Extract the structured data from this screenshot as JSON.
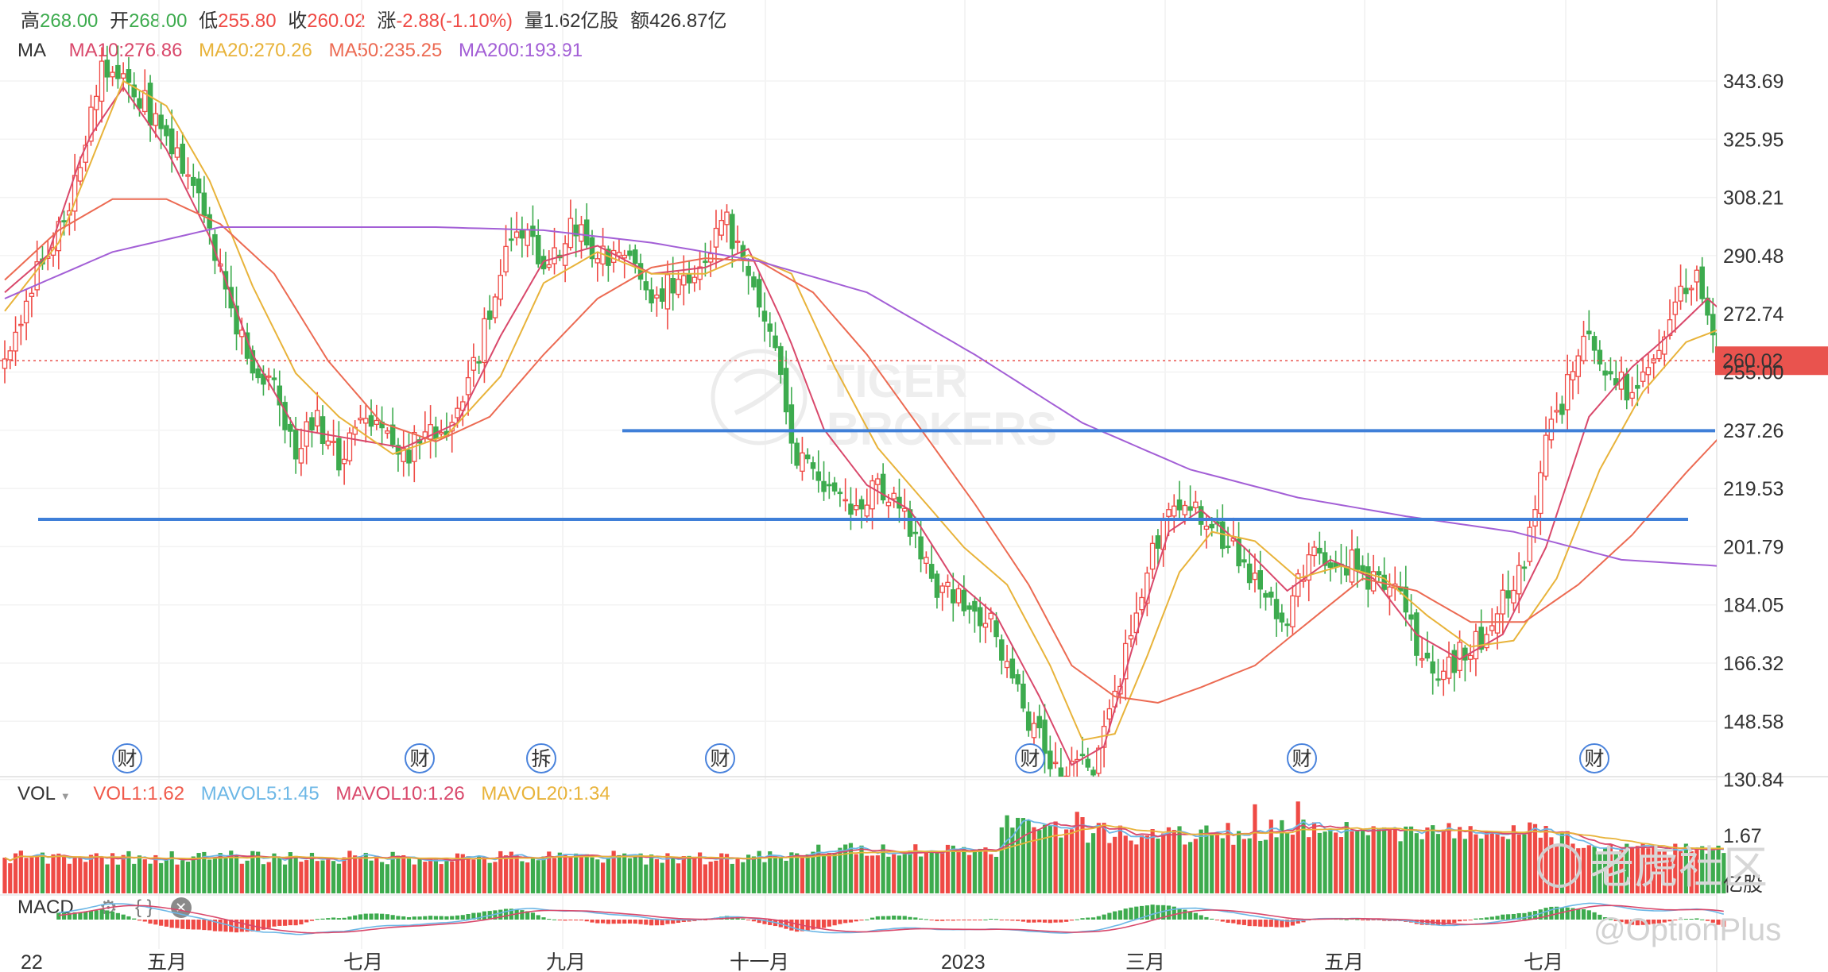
{
  "header": {
    "high_label": "高",
    "high": "268.00",
    "open_label": "开",
    "open": "268.00",
    "low_label": "低",
    "low": "255.80",
    "close_label": "收",
    "close": "260.02",
    "change_label": "涨",
    "change": "-2.88(-1.10%)",
    "volume_label": "量",
    "volume": "1.62亿股",
    "amount_label": "额",
    "amount": "426.87亿"
  },
  "ma_legend": {
    "label": "MA",
    "items": [
      {
        "text": "MA10:276.86",
        "color": "#d9486b"
      },
      {
        "text": "MA20:270.26",
        "color": "#e8b33a"
      },
      {
        "text": "MA50:235.25",
        "color": "#ec6a52"
      },
      {
        "text": "MA200:193.91",
        "color": "#a35fd6"
      }
    ]
  },
  "vol_legend": {
    "label": "VOL",
    "items": [
      {
        "text": "VOL1:1.62",
        "color": "#f05a4b"
      },
      {
        "text": "MAVOL5:1.45",
        "color": "#6cb7e6"
      },
      {
        "text": "MAVOL10:1.26",
        "color": "#d9486b"
      },
      {
        "text": "MAVOL20:1.34",
        "color": "#e8b33a"
      }
    ]
  },
  "macd_legend": {
    "label": "MACD"
  },
  "colors": {
    "up": "#ef4a45",
    "down": "#3dab4e",
    "support": "#3f7fd8",
    "price_tag": "#e9534e"
  },
  "watermark": {
    "line1": "TIGER",
    "line2": "BROKERS"
  },
  "brand": {
    "name": "老虎社区",
    "handle": "@OptionPlus"
  },
  "chart_data": {
    "type": "candlestick",
    "price_axis": {
      "ticks": [
        "343.69",
        "325.95",
        "308.21",
        "290.48",
        "272.74",
        "255.00",
        "237.26",
        "219.53",
        "201.79",
        "184.05",
        "166.32",
        "148.58",
        "130.84"
      ],
      "range": [
        127,
        362
      ]
    },
    "last_price": "260.02",
    "x_axis": {
      "ticks": [
        "22",
        "五月",
        "七月",
        "九月",
        "十一月",
        "2023",
        "三月",
        "五月",
        "七月"
      ]
    },
    "volume_axis": {
      "ticks": [
        "1.67"
      ],
      "unit": "亿股"
    },
    "support_lines": [
      237.5,
      209
    ],
    "event_markers": [
      "财",
      "财",
      "拆",
      "财",
      "财",
      "财",
      "财"
    ],
    "anchors": {
      "close": [
        [
          0,
          262
        ],
        [
          6,
          290
        ],
        [
          12,
          310
        ],
        [
          18,
          355
        ],
        [
          24,
          348
        ],
        [
          30,
          332
        ],
        [
          36,
          312
        ],
        [
          42,
          278
        ],
        [
          46,
          258
        ],
        [
          50,
          250
        ],
        [
          54,
          232
        ],
        [
          58,
          240
        ],
        [
          62,
          228
        ],
        [
          66,
          242
        ],
        [
          70,
          236
        ],
        [
          74,
          228
        ],
        [
          78,
          240
        ],
        [
          82,
          236
        ],
        [
          86,
          252
        ],
        [
          90,
          275
        ],
        [
          95,
          305
        ],
        [
          100,
          290
        ],
        [
          105,
          302
        ],
        [
          110,
          296
        ],
        [
          115,
          292
        ],
        [
          120,
          282
        ],
        [
          126,
          286
        ],
        [
          130,
          296
        ],
        [
          134,
          305
        ],
        [
          138,
          285
        ],
        [
          143,
          262
        ],
        [
          147,
          230
        ],
        [
          152,
          218
        ],
        [
          157,
          212
        ],
        [
          162,
          220
        ],
        [
          167,
          212
        ],
        [
          172,
          188
        ],
        [
          177,
          184
        ],
        [
          182,
          178
        ],
        [
          187,
          160
        ],
        [
          191,
          140
        ],
        [
          195,
          130
        ],
        [
          198,
          128
        ],
        [
          202,
          130
        ],
        [
          206,
          152
        ],
        [
          210,
          182
        ],
        [
          214,
          204
        ],
        [
          218,
          216
        ],
        [
          222,
          210
        ],
        [
          226,
          204
        ],
        [
          230,
          194
        ],
        [
          234,
          182
        ],
        [
          238,
          178
        ],
        [
          242,
          198
        ],
        [
          246,
          196
        ],
        [
          250,
          195
        ],
        [
          254,
          188
        ],
        [
          258,
          186
        ],
        [
          262,
          168
        ],
        [
          266,
          158
        ],
        [
          270,
          166
        ],
        [
          274,
          170
        ],
        [
          278,
          184
        ],
        [
          282,
          195
        ],
        [
          286,
          232
        ],
        [
          290,
          252
        ],
        [
          294,
          270
        ],
        [
          298,
          256
        ],
        [
          302,
          248
        ],
        [
          306,
          262
        ],
        [
          310,
          280
        ],
        [
          314,
          286
        ],
        [
          316,
          272
        ],
        [
          318,
          258
        ]
      ],
      "ma10": [
        [
          0,
          282
        ],
        [
          8,
          294
        ],
        [
          15,
          330
        ],
        [
          22,
          348
        ],
        [
          30,
          328
        ],
        [
          38,
          300
        ],
        [
          46,
          262
        ],
        [
          54,
          238
        ],
        [
          64,
          235
        ],
        [
          74,
          232
        ],
        [
          84,
          240
        ],
        [
          92,
          268
        ],
        [
          100,
          292
        ],
        [
          110,
          297
        ],
        [
          120,
          288
        ],
        [
          130,
          290
        ],
        [
          138,
          296
        ],
        [
          145,
          270
        ],
        [
          152,
          238
        ],
        [
          160,
          220
        ],
        [
          168,
          212
        ],
        [
          176,
          190
        ],
        [
          184,
          178
        ],
        [
          192,
          152
        ],
        [
          198,
          130
        ],
        [
          204,
          136
        ],
        [
          210,
          172
        ],
        [
          216,
          205
        ],
        [
          222,
          212
        ],
        [
          230,
          200
        ],
        [
          238,
          186
        ],
        [
          246,
          196
        ],
        [
          254,
          190
        ],
        [
          262,
          172
        ],
        [
          270,
          164
        ],
        [
          278,
          172
        ],
        [
          286,
          200
        ],
        [
          294,
          242
        ],
        [
          302,
          258
        ],
        [
          310,
          270
        ],
        [
          316,
          280
        ],
        [
          318,
          277
        ]
      ],
      "ma20": [
        [
          0,
          276
        ],
        [
          10,
          298
        ],
        [
          22,
          350
        ],
        [
          30,
          342
        ],
        [
          38,
          318
        ],
        [
          46,
          284
        ],
        [
          54,
          256
        ],
        [
          62,
          242
        ],
        [
          72,
          230
        ],
        [
          82,
          236
        ],
        [
          92,
          255
        ],
        [
          100,
          285
        ],
        [
          110,
          295
        ],
        [
          120,
          288
        ],
        [
          130,
          288
        ],
        [
          138,
          294
        ],
        [
          146,
          288
        ],
        [
          154,
          258
        ],
        [
          162,
          232
        ],
        [
          170,
          216
        ],
        [
          178,
          200
        ],
        [
          186,
          188
        ],
        [
          194,
          162
        ],
        [
          200,
          138
        ],
        [
          206,
          140
        ],
        [
          212,
          165
        ],
        [
          218,
          192
        ],
        [
          224,
          205
        ],
        [
          232,
          202
        ],
        [
          240,
          190
        ],
        [
          248,
          194
        ],
        [
          256,
          190
        ],
        [
          264,
          178
        ],
        [
          272,
          168
        ],
        [
          280,
          170
        ],
        [
          288,
          190
        ],
        [
          296,
          225
        ],
        [
          304,
          250
        ],
        [
          312,
          266
        ],
        [
          318,
          270
        ]
      ],
      "ma50": [
        [
          0,
          286
        ],
        [
          10,
          302
        ],
        [
          20,
          312
        ],
        [
          30,
          312
        ],
        [
          40,
          304
        ],
        [
          50,
          288
        ],
        [
          60,
          260
        ],
        [
          70,
          240
        ],
        [
          80,
          234
        ],
        [
          90,
          242
        ],
        [
          100,
          262
        ],
        [
          110,
          280
        ],
        [
          120,
          290
        ],
        [
          130,
          293
        ],
        [
          140,
          292
        ],
        [
          150,
          282
        ],
        [
          160,
          262
        ],
        [
          170,
          238
        ],
        [
          180,
          214
        ],
        [
          190,
          188
        ],
        [
          198,
          162
        ],
        [
          206,
          152
        ],
        [
          214,
          150
        ],
        [
          222,
          155
        ],
        [
          232,
          162
        ],
        [
          242,
          176
        ],
        [
          252,
          190
        ],
        [
          262,
          186
        ],
        [
          272,
          176
        ],
        [
          282,
          176
        ],
        [
          292,
          188
        ],
        [
          302,
          204
        ],
        [
          312,
          224
        ],
        [
          318,
          235
        ]
      ],
      "ma200": [
        [
          0,
          280
        ],
        [
          20,
          295
        ],
        [
          40,
          303
        ],
        [
          60,
          303
        ],
        [
          80,
          303
        ],
        [
          100,
          302
        ],
        [
          120,
          298
        ],
        [
          140,
          292
        ],
        [
          160,
          282
        ],
        [
          180,
          262
        ],
        [
          200,
          240
        ],
        [
          220,
          225
        ],
        [
          240,
          216
        ],
        [
          260,
          210
        ],
        [
          280,
          205
        ],
        [
          300,
          196
        ],
        [
          318,
          194
        ]
      ]
    }
  }
}
